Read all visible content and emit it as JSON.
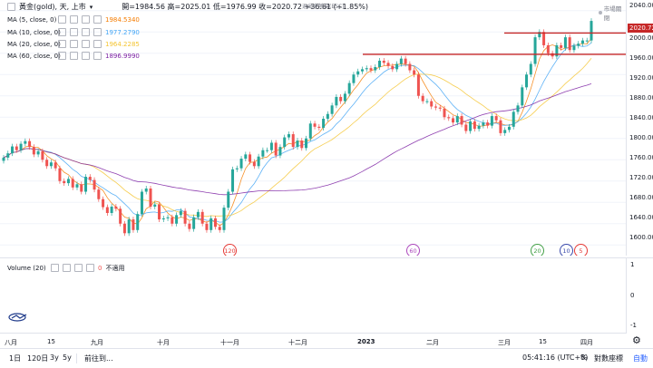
{
  "header": {
    "symbol": "黃金(gold), 天, 上市",
    "ohlc": "開=1984.56  高=2025.01  低=1976.99  收=2020.72  +36.61 (+1.85%)",
    "hint": "退出全螢幕(ESC)",
    "market_status": "市場關閉"
  },
  "ma": [
    {
      "label": "MA (5, close, 0)",
      "value": "1984.5340",
      "color": "#f57c00"
    },
    {
      "label": "MA (10, close, 0)",
      "value": "1977.2790",
      "color": "#42a5f5"
    },
    {
      "label": "MA (20, close, 0)",
      "value": "1964.2285",
      "color": "#f4c430"
    },
    {
      "label": "MA (60, close, 0)",
      "value": "1896.9990",
      "color": "#7b1fa2"
    }
  ],
  "volume": {
    "label": "Volume (20)",
    "value": "0",
    "note": "不適用"
  },
  "price_axis": {
    "ticks": [
      "2040.00",
      "2000.00",
      "1960.00",
      "1920.00",
      "1880.00",
      "1840.00",
      "1800.00",
      "1760.00",
      "1720.00",
      "1680.00",
      "1640.00",
      "1600.00"
    ],
    "current": "2020.72"
  },
  "volume_axis": {
    "ticks": [
      "1",
      "0",
      "-1"
    ]
  },
  "time_axis": [
    "八月",
    "15",
    "九月",
    "十月",
    "十一月",
    "十二月",
    "2023",
    "二月",
    "三月",
    "15",
    "四月"
  ],
  "event_badges": [
    {
      "text": "120",
      "color": "#e53935"
    },
    {
      "text": "60",
      "color": "#ab47bc"
    },
    {
      "text": "20",
      "color": "#43a047"
    },
    {
      "text": "10",
      "color": "#3949ab"
    },
    {
      "text": "5",
      "color": "#e53935"
    }
  ],
  "toolbar": {
    "ranges": [
      "1日",
      "120日",
      "3y",
      "5y"
    ],
    "goto": "前往到...",
    "time": "05:41:16 (UTC+8)",
    "pct": "%",
    "log": "對數座標",
    "auto": "自動"
  },
  "colors": {
    "up": "#26a69a",
    "down": "#ef5350",
    "resistance": "#c62828"
  },
  "chart_data": {
    "type": "candlestick",
    "ylim": [
      1580,
      2060
    ],
    "resistance_levels": [
      1998,
      1958
    ],
    "ma_lines": [
      "MA 5",
      "MA 10",
      "MA 20",
      "MA 60"
    ],
    "x": [
      "八月",
      "15",
      "九月",
      "十月",
      "十一月",
      "十二月",
      "2023",
      "二月",
      "三月",
      "15",
      "四月"
    ],
    "close_series": [
      1764,
      1772,
      1785,
      1778,
      1790,
      1795,
      1784,
      1770,
      1776,
      1760,
      1748,
      1755,
      1744,
      1720,
      1716,
      1724,
      1708,
      1714,
      1700,
      1728,
      1722,
      1704,
      1686,
      1671,
      1660,
      1672,
      1668,
      1640,
      1622,
      1648,
      1628,
      1658,
      1700,
      1706,
      1672,
      1676,
      1648,
      1650,
      1652,
      1640,
      1656,
      1664,
      1640,
      1630,
      1652,
      1662,
      1640,
      1628,
      1650,
      1634,
      1628,
      1670,
      1700,
      1742,
      1744,
      1762,
      1770,
      1756,
      1748,
      1766,
      1778,
      1778,
      1792,
      1768,
      1784,
      1802,
      1808,
      1784,
      1796,
      1782,
      1800,
      1828,
      1822,
      1820,
      1837,
      1846,
      1862,
      1878,
      1870,
      1884,
      1904,
      1920,
      1926,
      1930,
      1932,
      1928,
      1934,
      1946,
      1942,
      1936,
      1930,
      1940,
      1950,
      1940,
      1928,
      1920,
      1880,
      1870,
      1870,
      1860,
      1858,
      1856,
      1840,
      1838,
      1830,
      1842,
      1826,
      1814,
      1832,
      1818,
      1824,
      1830,
      1824,
      1842,
      1834,
      1810,
      1816,
      1822,
      1850,
      1862,
      1896,
      1920,
      1940,
      1990,
      2000,
      1975,
      1960,
      1954,
      1975,
      1970,
      1990,
      1966,
      1974,
      1978,
      1984,
      1984,
      2020.72
    ]
  }
}
